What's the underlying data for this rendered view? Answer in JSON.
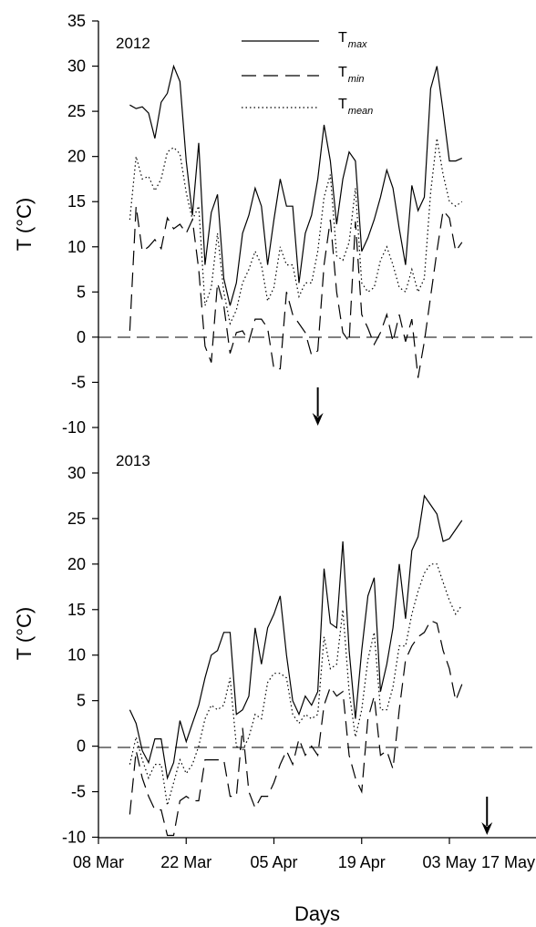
{
  "chart_data": {
    "type": "line",
    "xlabel": "Days",
    "ylabel": "T (°C)",
    "x_ticks": [
      "08 Mar",
      "22 Mar",
      "05 Apr",
      "19 Apr",
      "03 May",
      "17 May"
    ],
    "legend": [
      {
        "key": "tmax",
        "main": "T",
        "sub": "max"
      },
      {
        "key": "tmin",
        "main": "T",
        "sub": "min"
      },
      {
        "key": "tmean",
        "main": "T",
        "sub": "mean"
      }
    ],
    "panels": [
      {
        "year": "2012",
        "ylim": [
          -10,
          35
        ],
        "y_ticks": [
          -10,
          -5,
          0,
          5,
          10,
          15,
          20,
          25,
          30,
          35
        ],
        "arrow_day": 30,
        "series": {
          "tmax": [
            25.7,
            25.3,
            25.5,
            24.8,
            22.0,
            26.0,
            27.0,
            30.0,
            28.3,
            19.5,
            13.5,
            21.5,
            8.0,
            13.8,
            15.8,
            6.5,
            3.5,
            6.0,
            11.5,
            13.5,
            16.5,
            14.5,
            8.0,
            13.0,
            17.5,
            14.5,
            14.5,
            6.0,
            11.5,
            13.5,
            17.5,
            23.5,
            19.5,
            12.5,
            17.5,
            20.5,
            19.5,
            9.5,
            11.0,
            13.0,
            15.5,
            18.5,
            16.5,
            12.0,
            8.0,
            16.8,
            14.0,
            15.5,
            27.5,
            30.0,
            25.0,
            19.5,
            19.5,
            19.8
          ],
          "tmin": [
            0.7,
            14.5,
            9.5,
            10.0,
            10.8,
            9.8,
            13.2,
            12.0,
            12.5,
            11.5,
            13.0,
            7.5,
            -1.0,
            -2.8,
            6.0,
            3.5,
            -1.8,
            0.5,
            0.7,
            -0.5,
            2.0,
            2.0,
            1.0,
            -3.5,
            -3.5,
            5.0,
            2.5,
            1.5,
            0.5,
            -2.0,
            -1.5,
            8.0,
            13.0,
            5.0,
            0.5,
            -0.5,
            12.8,
            2.5,
            1.0,
            -0.8,
            0.5,
            2.5,
            -0.5,
            2.5,
            -0.5,
            2.0,
            -4.5,
            -0.5,
            4.5,
            9.5,
            14.0,
            13.2,
            9.5,
            10.5
          ],
          "tmean": [
            13.0,
            20.0,
            17.5,
            17.8,
            16.2,
            17.5,
            20.5,
            21.0,
            20.3,
            16.0,
            13.0,
            14.5,
            3.5,
            5.5,
            11.5,
            5.0,
            1.5,
            3.0,
            6.0,
            7.5,
            9.5,
            8.0,
            4.0,
            5.5,
            10.0,
            8.0,
            8.0,
            4.5,
            6.0,
            6.0,
            9.5,
            15.5,
            18.0,
            9.0,
            8.5,
            10.5,
            16.5,
            6.0,
            5.0,
            5.5,
            8.5,
            10.0,
            8.0,
            5.5,
            5.0,
            7.5,
            5.0,
            6.5,
            16.0,
            22.0,
            18.0,
            15.0,
            14.5,
            15.0
          ]
        }
      },
      {
        "year": "2013",
        "ylim": [
          -10,
          35
        ],
        "y_ticks": [
          -10,
          -5,
          0,
          5,
          10,
          15,
          20,
          25,
          30
        ],
        "arrow_day": 57,
        "series": {
          "tmax": [
            4.0,
            2.5,
            -0.5,
            -1.8,
            0.8,
            0.8,
            -3.5,
            -1.8,
            2.8,
            0.5,
            2.5,
            4.5,
            7.5,
            10.0,
            10.5,
            12.5,
            12.5,
            3.5,
            4.0,
            5.5,
            13.0,
            9.0,
            13.0,
            14.5,
            16.5,
            10.0,
            5.0,
            3.5,
            5.5,
            4.5,
            6.0,
            19.5,
            13.5,
            13.0,
            22.5,
            10.5,
            3.0,
            10.5,
            16.5,
            18.5,
            6.0,
            9.0,
            13.0,
            20.0,
            14.0,
            21.5,
            23.0,
            27.5,
            26.5,
            25.5,
            22.5,
            22.8,
            23.8,
            24.8
          ],
          "tmin": [
            -7.5,
            -0.5,
            -3.5,
            -5.5,
            -7.0,
            -7.0,
            -9.8,
            -9.8,
            -6.0,
            -5.5,
            -6.0,
            -6.0,
            -1.5,
            -1.5,
            -1.5,
            -1.5,
            -5.5,
            -5.5,
            2.0,
            -5.0,
            -6.8,
            -5.5,
            -5.5,
            -4.0,
            -2.0,
            -0.5,
            -2.0,
            0.8,
            -1.0,
            0.0,
            -1.0,
            4.5,
            6.5,
            5.5,
            6.0,
            -1.0,
            -3.5,
            -5.0,
            3.0,
            5.5,
            -1.0,
            -0.5,
            -2.5,
            4.0,
            9.5,
            11.0,
            12.0,
            12.5,
            13.8,
            13.5,
            10.5,
            8.5,
            5.0,
            6.8
          ],
          "tmean": [
            -2.0,
            1.0,
            -1.5,
            -3.5,
            -2.0,
            -2.0,
            -6.5,
            -4.0,
            -1.5,
            -3.0,
            -2.0,
            0.0,
            3.0,
            4.5,
            4.0,
            4.5,
            7.5,
            0.0,
            -0.5,
            1.0,
            3.5,
            3.0,
            7.0,
            8.0,
            8.0,
            7.5,
            3.5,
            2.5,
            3.5,
            3.0,
            3.5,
            12.0,
            8.5,
            9.0,
            15.0,
            6.0,
            1.0,
            4.0,
            9.5,
            12.5,
            4.0,
            4.0,
            6.5,
            11.0,
            11.0,
            14.5,
            17.0,
            19.0,
            20.0,
            20.0,
            18.0,
            16.0,
            14.5,
            15.5
          ]
        }
      }
    ]
  }
}
